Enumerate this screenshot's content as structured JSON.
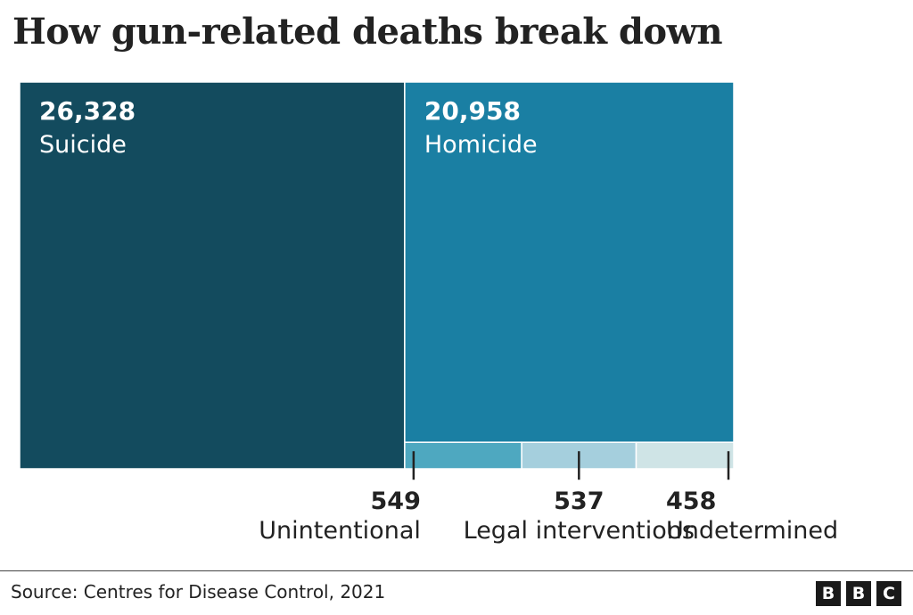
{
  "title": "How gun-related deaths break down",
  "source": "Source: Centres for Disease Control, 2021",
  "logo": [
    "B",
    "B",
    "C"
  ],
  "colors": {
    "suicide": "#134b5e",
    "homicide": "#1a7fa3",
    "unintentional": "#4ea8c0",
    "legal_interventions": "#a5cfdd",
    "undetermined": "#cfe4e6",
    "text_dark": "#222222",
    "text_light": "#ffffff"
  },
  "chart_data": {
    "type": "treemap",
    "title": "How gun-related deaths break down",
    "unit": "deaths",
    "categories": [
      "Suicide",
      "Homicide",
      "Unintentional",
      "Legal interventions",
      "Undetermined"
    ],
    "values": [
      26328,
      20958,
      549,
      537,
      458
    ],
    "value_labels": [
      "26,328",
      "20,958",
      "549",
      "537",
      "458"
    ]
  }
}
